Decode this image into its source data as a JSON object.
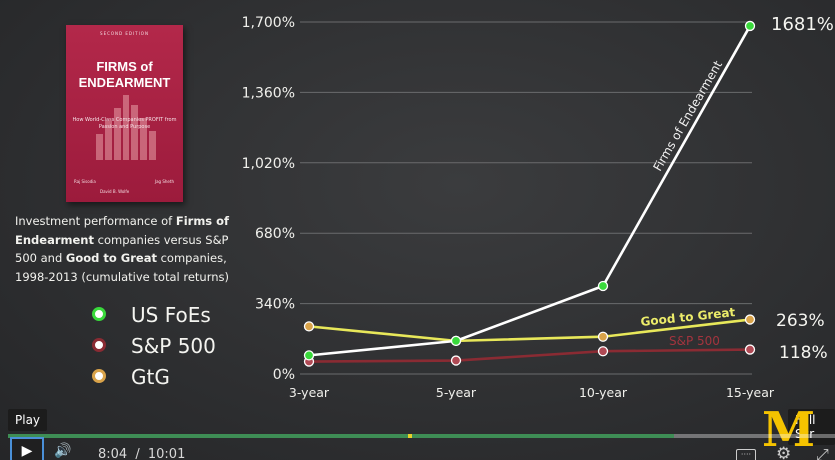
{
  "book": {
    "edition": "SECOND EDITION",
    "title_line1": "FIRMS of",
    "title_line2": "ENDEARMENT",
    "subtitle": "How World-Class Companies PROFIT from Passion and Purpose",
    "author1": "Raj Sisodia",
    "author2": "Jag Sheth",
    "author3": "David B. Wolfe"
  },
  "description": {
    "p1": "Investment performance of ",
    "b1": "Firms of Endearment",
    "p2": " companies versus S&P 500 and ",
    "b2": "Good to Great",
    "p3": " companies, 1998-2013 (cumulative total returns)"
  },
  "legend": [
    {
      "label": "US FoEs",
      "color": "#39d93b"
    },
    {
      "label": "S&P 500",
      "color": "#8a2b33"
    },
    {
      "label": "GtG",
      "color": "#d9a34a"
    }
  ],
  "chart_data": {
    "type": "line",
    "categories": [
      "3-year",
      "5-year",
      "10-year",
      "15-year"
    ],
    "y_ticks": [
      "0%",
      "340%",
      "680%",
      "1,020%",
      "1,360%",
      "1,700%"
    ],
    "ylim": [
      0,
      1700
    ],
    "series": [
      {
        "name": "Firms of Endearment",
        "values": [
          90,
          160,
          425,
          1681
        ],
        "color": "#ffffff",
        "marker": "#39d93b"
      },
      {
        "name": "Good to Great",
        "values": [
          230,
          160,
          180,
          263
        ],
        "color": "#e8e85a",
        "marker": "#d9a34a"
      },
      {
        "name": "S&P 500",
        "values": [
          60,
          65,
          110,
          118
        ],
        "color": "#8a2b33",
        "marker": "#b04a55"
      }
    ],
    "end_labels": {
      "foe": "1681%",
      "gtg": "263%",
      "sp": "118%"
    },
    "grid": true
  },
  "player": {
    "play_tooltip": "Play",
    "fullscreen_tooltip": "Full Scr",
    "current_time": "8:04",
    "separator": "/",
    "duration": "10:01",
    "progress": 0.805,
    "buffer": 0.82,
    "play_icon": "▶",
    "volume_icon": "🔊",
    "cc_label": "····",
    "settings_icon": "⚙",
    "fullscreen_icon": "⤢",
    "logo_text": "M"
  }
}
